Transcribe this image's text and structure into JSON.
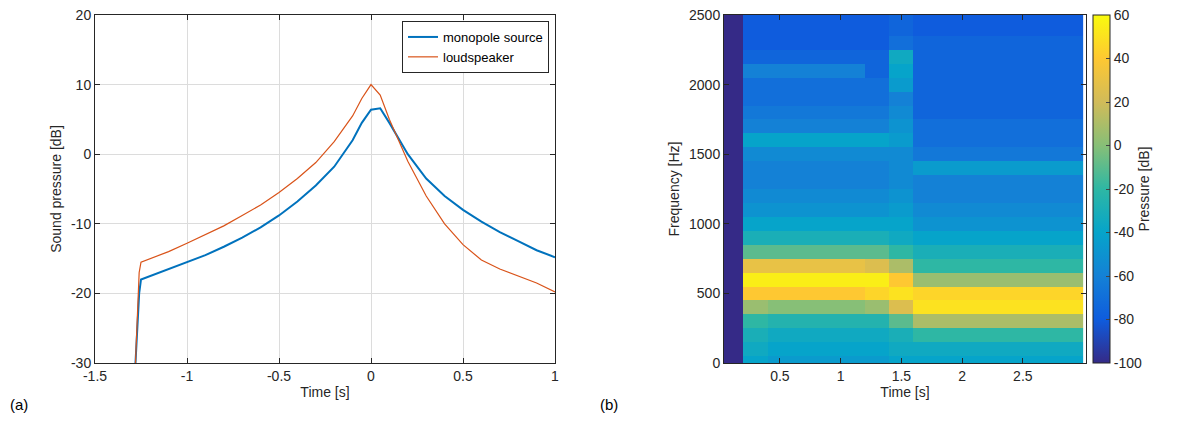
{
  "chart_data": [
    {
      "type": "line",
      "panel_label": "(a)",
      "x_label": "Time [s]",
      "y_label": "Sound pressure [dB]",
      "x": [
        -1.28,
        -1.26,
        -1.25,
        -1.2,
        -1.1,
        -1.0,
        -0.9,
        -0.8,
        -0.7,
        -0.6,
        -0.5,
        -0.4,
        -0.3,
        -0.2,
        -0.1,
        -0.05,
        0,
        0.05,
        0.1,
        0.2,
        0.3,
        0.4,
        0.5,
        0.6,
        0.7,
        0.8,
        0.9,
        1.0
      ],
      "series": [
        {
          "name": "monopole source",
          "color": "#0072bd",
          "values": [
            -30,
            -20,
            -18,
            -17.5,
            -16.5,
            -15.5,
            -14.5,
            -13.3,
            -12,
            -10.5,
            -8.8,
            -6.8,
            -4.5,
            -1.8,
            2,
            4.5,
            6.4,
            6.6,
            4.5,
            0,
            -3.5,
            -6,
            -8,
            -9.7,
            -11.2,
            -12.5,
            -13.8,
            -14.8
          ]
        },
        {
          "name": "loudspeaker",
          "color": "#d95319",
          "values": [
            -30,
            -17,
            -15.5,
            -15,
            -14,
            -12.8,
            -11.6,
            -10.3,
            -8.8,
            -7.3,
            -5.5,
            -3.5,
            -1.2,
            1.8,
            5.5,
            8,
            10,
            8.5,
            5,
            -1,
            -6,
            -10,
            -13,
            -15.2,
            -16.5,
            -17.5,
            -18.5,
            -19.8
          ]
        }
      ],
      "xlim": [
        -1.5,
        1
      ],
      "xticks": [
        -1.5,
        -1,
        -0.5,
        0,
        0.5,
        1
      ],
      "ylim": [
        -30,
        20
      ],
      "yticks": [
        -30,
        -20,
        -10,
        0,
        10,
        20
      ],
      "grid": true,
      "legend": "top right"
    },
    {
      "type": "heatmap",
      "panel_label": "(b)",
      "x_label": "Time [s]",
      "y_label": "Frequency [Hz]",
      "x": [
        0.1,
        0.3,
        0.5,
        0.7,
        0.9,
        1.1,
        1.3,
        1.5,
        1.7,
        1.9,
        2.1,
        2.3,
        2.5,
        2.7,
        2.9
      ],
      "y": [
        0,
        100,
        200,
        300,
        400,
        500,
        600,
        700,
        800,
        900,
        1000,
        1100,
        1200,
        1300,
        1400,
        1500,
        1600,
        1700,
        1800,
        1900,
        2000,
        2100,
        2200,
        2300,
        2400,
        2500
      ],
      "cells": [
        [
          -100,
          -40,
          -45,
          -45,
          -45,
          -45,
          -45,
          -40,
          -40,
          -40,
          -40,
          -40,
          -40,
          -40,
          -40
        ],
        [
          -100,
          -35,
          -40,
          -40,
          -40,
          -40,
          -40,
          -35,
          -35,
          -35,
          -35,
          -35,
          -35,
          -35,
          -35
        ],
        [
          -100,
          -30,
          -35,
          -35,
          -35,
          -35,
          -35,
          -30,
          -20,
          -20,
          -20,
          -20,
          -20,
          -20,
          -20
        ],
        [
          -100,
          -20,
          -25,
          -25,
          -25,
          -25,
          -25,
          -10,
          10,
          10,
          10,
          10,
          10,
          10,
          10
        ],
        [
          -100,
          5,
          0,
          0,
          0,
          0,
          5,
          25,
          50,
          50,
          50,
          50,
          50,
          50,
          50
        ],
        [
          -100,
          40,
          40,
          40,
          40,
          40,
          45,
          50,
          45,
          45,
          45,
          45,
          45,
          45,
          45
        ],
        [
          -100,
          55,
          55,
          55,
          55,
          55,
          55,
          40,
          5,
          5,
          5,
          5,
          5,
          5,
          5
        ],
        [
          -100,
          30,
          30,
          30,
          30,
          30,
          25,
          10,
          -20,
          -20,
          -20,
          -20,
          -20,
          -20,
          -20
        ],
        [
          -100,
          -10,
          -10,
          -10,
          -10,
          -10,
          -10,
          -20,
          -30,
          -30,
          -30,
          -30,
          -30,
          -30,
          -30
        ],
        [
          -100,
          -30,
          -30,
          -30,
          -30,
          -30,
          -30,
          -35,
          -40,
          -40,
          -40,
          -40,
          -40,
          -40,
          -40
        ],
        [
          -100,
          -40,
          -40,
          -40,
          -40,
          -40,
          -40,
          -40,
          -50,
          -50,
          -50,
          -50,
          -50,
          -50,
          -50
        ],
        [
          -100,
          -50,
          -50,
          -50,
          -50,
          -50,
          -50,
          -45,
          -55,
          -55,
          -55,
          -55,
          -55,
          -55,
          -55
        ],
        [
          -100,
          -55,
          -55,
          -55,
          -55,
          -55,
          -55,
          -50,
          -60,
          -60,
          -60,
          -60,
          -60,
          -60,
          -60
        ],
        [
          -100,
          -60,
          -60,
          -60,
          -60,
          -60,
          -60,
          -55,
          -60,
          -60,
          -60,
          -60,
          -60,
          -60,
          -60
        ],
        [
          -100,
          -60,
          -60,
          -60,
          -60,
          -60,
          -60,
          -55,
          -45,
          -45,
          -45,
          -45,
          -45,
          -45,
          -45
        ],
        [
          -100,
          -55,
          -55,
          -55,
          -55,
          -55,
          -55,
          -55,
          -65,
          -65,
          -65,
          -65,
          -65,
          -65,
          -65
        ],
        [
          -100,
          -40,
          -40,
          -40,
          -40,
          -40,
          -40,
          -45,
          -70,
          -70,
          -70,
          -70,
          -70,
          -70,
          -70
        ],
        [
          -100,
          -60,
          -60,
          -60,
          -60,
          -60,
          -60,
          -50,
          -70,
          -70,
          -70,
          -70,
          -70,
          -70,
          -70
        ],
        [
          -100,
          -65,
          -65,
          -65,
          -65,
          -65,
          -65,
          -55,
          -75,
          -75,
          -75,
          -75,
          -75,
          -75,
          -75
        ],
        [
          -100,
          -70,
          -70,
          -70,
          -70,
          -70,
          -70,
          -60,
          -75,
          -75,
          -75,
          -75,
          -75,
          -75,
          -75
        ],
        [
          -100,
          -70,
          -70,
          -70,
          -70,
          -70,
          -70,
          -45,
          -75,
          -75,
          -75,
          -75,
          -75,
          -75,
          -75
        ],
        [
          -100,
          -60,
          -60,
          -60,
          -60,
          -60,
          -75,
          -40,
          -75,
          -75,
          -75,
          -75,
          -75,
          -75,
          -75
        ],
        [
          -100,
          -75,
          -75,
          -75,
          -75,
          -75,
          -75,
          -35,
          -75,
          -75,
          -75,
          -75,
          -75,
          -75,
          -75
        ],
        [
          -100,
          -80,
          -80,
          -80,
          -80,
          -80,
          -80,
          -70,
          -75,
          -75,
          -75,
          -75,
          -75,
          -75,
          -75
        ],
        [
          -100,
          -80,
          -80,
          -80,
          -80,
          -80,
          -80,
          -75,
          -80,
          -80,
          -80,
          -80,
          -80,
          -80,
          -80
        ],
        [
          -100,
          -80,
          -80,
          -80,
          -80,
          -80,
          -80,
          -75,
          -80,
          -80,
          -80,
          -80,
          -80,
          -80,
          -80
        ]
      ],
      "xlim": [
        0.04,
        3.02
      ],
      "xticks": [
        0.5,
        1,
        1.5,
        2,
        2.5
      ],
      "ylim": [
        0,
        2500
      ],
      "yticks": [
        0,
        500,
        1000,
        1500,
        2000,
        2500
      ],
      "grid": false,
      "colorbar": {
        "title": "Pressure [dB]",
        "range": [
          -100,
          60
        ],
        "ticks": [
          -100,
          -80,
          -60,
          -40,
          -20,
          0,
          20,
          40,
          60
        ]
      }
    }
  ]
}
